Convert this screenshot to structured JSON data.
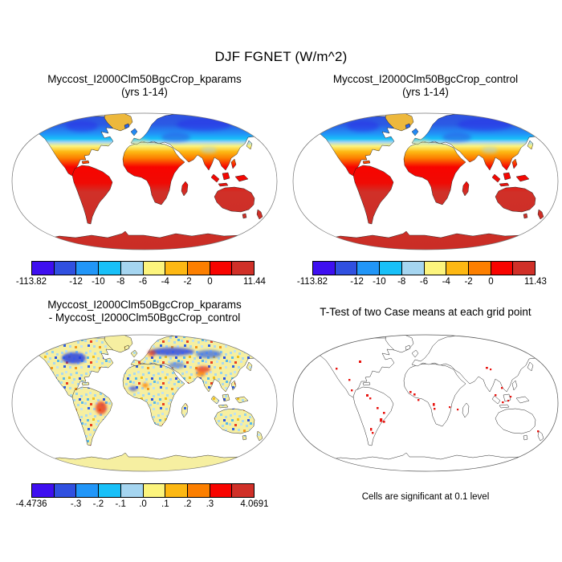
{
  "figure": {
    "title": "DJF FGNET (W/m^2)",
    "background": "#ffffff"
  },
  "panels": {
    "kparams": {
      "title_line1": "Myccost_I2000Clm50BgcCrop_kparams",
      "title_line2": "(yrs 1-14)"
    },
    "control": {
      "title_line1": "Myccost_I2000Clm50BgcCrop_control",
      "title_line2": "(yrs 1-14)"
    },
    "diff": {
      "title_line1": "Myccost_I2000Clm50BgcCrop_kparams",
      "title_line2": "- Myccost_I2000Clm50BgcCrop_control"
    },
    "ttest": {
      "title": "T-Test of two Case means at each grid point",
      "caption": "Cells are significant at 0.1 level"
    }
  },
  "colorbars": {
    "palette": [
      "#3e0ff0",
      "#3050e0",
      "#2196f8",
      "#18c0f8",
      "#a5d5f0",
      "#fcf47d",
      "#fdb813",
      "#fc7f00",
      "#f80400",
      "#d03028"
    ],
    "tick_positions": [
      0,
      0.2,
      0.3,
      0.4,
      0.5,
      0.6,
      0.7,
      0.8,
      1
    ],
    "kparams": {
      "labels": [
        "-113.82",
        "-12",
        "-10",
        "-8",
        "-6",
        "-4",
        "-2",
        "0",
        "11.44"
      ]
    },
    "control": {
      "labels": [
        "-113.82",
        "-12",
        "-10",
        "-8",
        "-6",
        "-4",
        "-2",
        "0",
        "11.43"
      ]
    },
    "diff": {
      "labels": [
        "-4.4736",
        "-.3",
        "-.2",
        "-.1",
        ".0",
        ".1",
        ".2",
        ".3",
        "4.0691"
      ]
    }
  },
  "chart_data": [
    {
      "type": "heatmap",
      "panel": "top_left",
      "title": "Myccost_I2000Clm50BgcCrop_kparams",
      "subtitle": "(yrs 1-14)",
      "variable": "DJF FGNET (W/m^2)",
      "projection": "Robinson world map, ocean masked white",
      "min": -113.82,
      "max": 11.44,
      "colorbar_boundaries": [
        -12,
        -10,
        -8,
        -6,
        -4,
        -2,
        0
      ],
      "palette": [
        "#3e0ff0",
        "#3050e0",
        "#2196f8",
        "#18c0f8",
        "#a5d5f0",
        "#fcf47d",
        "#fdb813",
        "#fc7f00",
        "#f80400",
        "#d03028"
      ],
      "spatial_pattern": "blue high northern latitudes grading through pale yellow, gold and orange mid-latitudes to red/dark-red tropics and southern continents; Greenland gold; Antarctica dark red"
    },
    {
      "type": "heatmap",
      "panel": "top_right",
      "title": "Myccost_I2000Clm50BgcCrop_control",
      "subtitle": "(yrs 1-14)",
      "variable": "DJF FGNET (W/m^2)",
      "projection": "Robinson world map, ocean masked white",
      "min": -113.82,
      "max": 11.43,
      "colorbar_boundaries": [
        -12,
        -10,
        -8,
        -6,
        -4,
        -2,
        0
      ],
      "palette": [
        "#3e0ff0",
        "#3050e0",
        "#2196f8",
        "#18c0f8",
        "#a5d5f0",
        "#fcf47d",
        "#fdb813",
        "#fc7f00",
        "#f80400",
        "#d03028"
      ],
      "spatial_pattern": "nearly identical to kparams case"
    },
    {
      "type": "heatmap",
      "panel": "bottom_left",
      "title": "Myccost_I2000Clm50BgcCrop_kparams - Myccost_I2000Clm50BgcCrop_control",
      "variable": "difference of DJF FGNET (W/m^2)",
      "projection": "Robinson world map, ocean masked white",
      "min": -4.4736,
      "max": 4.0691,
      "colorbar_boundaries": [
        -0.3,
        -0.2,
        -0.1,
        0,
        0.1,
        0.2,
        0.3
      ],
      "palette": [
        "#3e0ff0",
        "#3050e0",
        "#2196f8",
        "#18c0f8",
        "#a5d5f0",
        "#fcf47d",
        "#fdb813",
        "#fc7f00",
        "#f80400",
        "#d03028"
      ],
      "spatial_pattern": "mostly pale-yellow/pale-blue speckle; dark blue patches over north-central US and northern Eurasia; red/orange patches over Brazil, eastern Europe and Mongolia; Antarctica uniform pale yellow"
    },
    {
      "type": "map",
      "panel": "bottom_right",
      "title": "T-Test of two Case means at each grid point",
      "caption": "Cells are significant at 0.1 level",
      "significant_cell_color": "#e81510",
      "spatial_pattern": "white continents with black coastlines; scattered small red significant cells over South America, West and Southern Africa, Maritime Continent, central Asia, Madagascar, western North America, New Zealand"
    }
  ]
}
